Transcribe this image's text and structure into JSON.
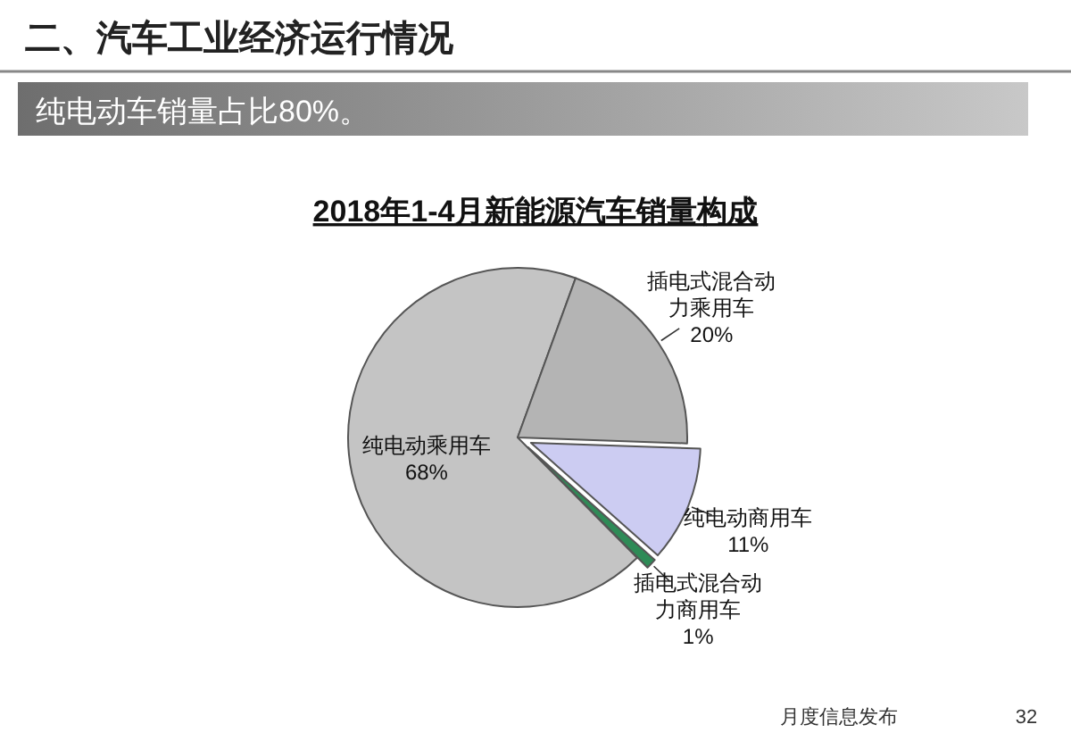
{
  "chart_data": {
    "type": "pie",
    "title": "2018年1-4月新能源汽车销量构成",
    "subtitle": "纯电动车销量占比80%。",
    "categories": [
      "纯电动乘用车",
      "插电式混合动力乘用车",
      "纯电动商用车",
      "插电式混合动力商用车"
    ],
    "values": [
      68,
      20,
      11,
      1
    ],
    "colors": [
      "#c4c4c4",
      "#b4b4b4",
      "#ccccf2",
      "#2e8b57"
    ],
    "value_labels": [
      "68%",
      "20%",
      "11%",
      "1%"
    ],
    "annotations": [
      "二、汽车工业经济运行情况",
      "月度信息发布",
      "32"
    ]
  }
}
